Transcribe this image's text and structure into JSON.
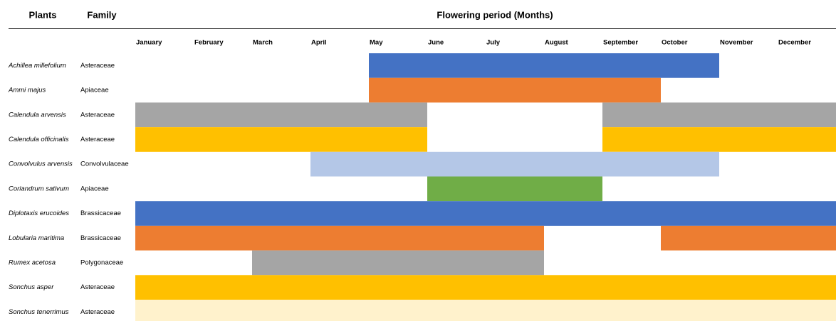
{
  "header": {
    "plants": "Plants",
    "family": "Family",
    "period": "Flowering period (Months)"
  },
  "months": [
    "January",
    "February",
    "March",
    "April",
    "May",
    "June",
    "July",
    "August",
    "September",
    "October",
    "November",
    "December"
  ],
  "rows": [
    {
      "plant": "Achillea millefolium",
      "family": "Asteraceae",
      "color": "#4472c4",
      "periods": [
        [
          4,
          9
        ]
      ]
    },
    {
      "plant": "Ammi majus",
      "family": "Apiaceae",
      "color": "#ed7d31",
      "periods": [
        [
          4,
          8
        ]
      ]
    },
    {
      "plant": "Calendula arvensis",
      "family": "Asteraceae",
      "color": "#a5a5a5",
      "periods": [
        [
          0,
          4
        ],
        [
          8,
          11
        ]
      ]
    },
    {
      "plant": "Calendula officinalis",
      "family": "Asteraceae",
      "color": "#ffc000",
      "periods": [
        [
          0,
          4
        ],
        [
          8,
          11
        ]
      ]
    },
    {
      "plant": "Convolvulus arvensis",
      "family": "Convolvulaceae",
      "color": "#b4c7e7",
      "periods": [
        [
          3,
          9
        ]
      ]
    },
    {
      "plant": "Coriandrum sativum",
      "family": "Apiaceae",
      "color": "#70ad47",
      "periods": [
        [
          5,
          7
        ]
      ]
    },
    {
      "plant": "Diplotaxis erucoides",
      "family": "Brassicaceae",
      "color": "#4472c4",
      "periods": [
        [
          0,
          11
        ]
      ]
    },
    {
      "plant": "Lobularia maritima",
      "family": "Brassicaceae",
      "color": "#ed7d31",
      "periods": [
        [
          0,
          6
        ],
        [
          9,
          11
        ]
      ]
    },
    {
      "plant": "Rumex acetosa",
      "family": "Polygonaceae",
      "color": "#a5a5a5",
      "periods": [
        [
          2,
          6
        ]
      ]
    },
    {
      "plant": "Sonchus asper",
      "family": "Asteraceae",
      "color": "#ffc000",
      "periods": [
        [
          0,
          11
        ]
      ]
    },
    {
      "plant": "Sonchus tenerrimus",
      "family": "Asteraceae",
      "color": "#fff2cc",
      "periods": [
        [
          0,
          11
        ]
      ]
    }
  ]
}
